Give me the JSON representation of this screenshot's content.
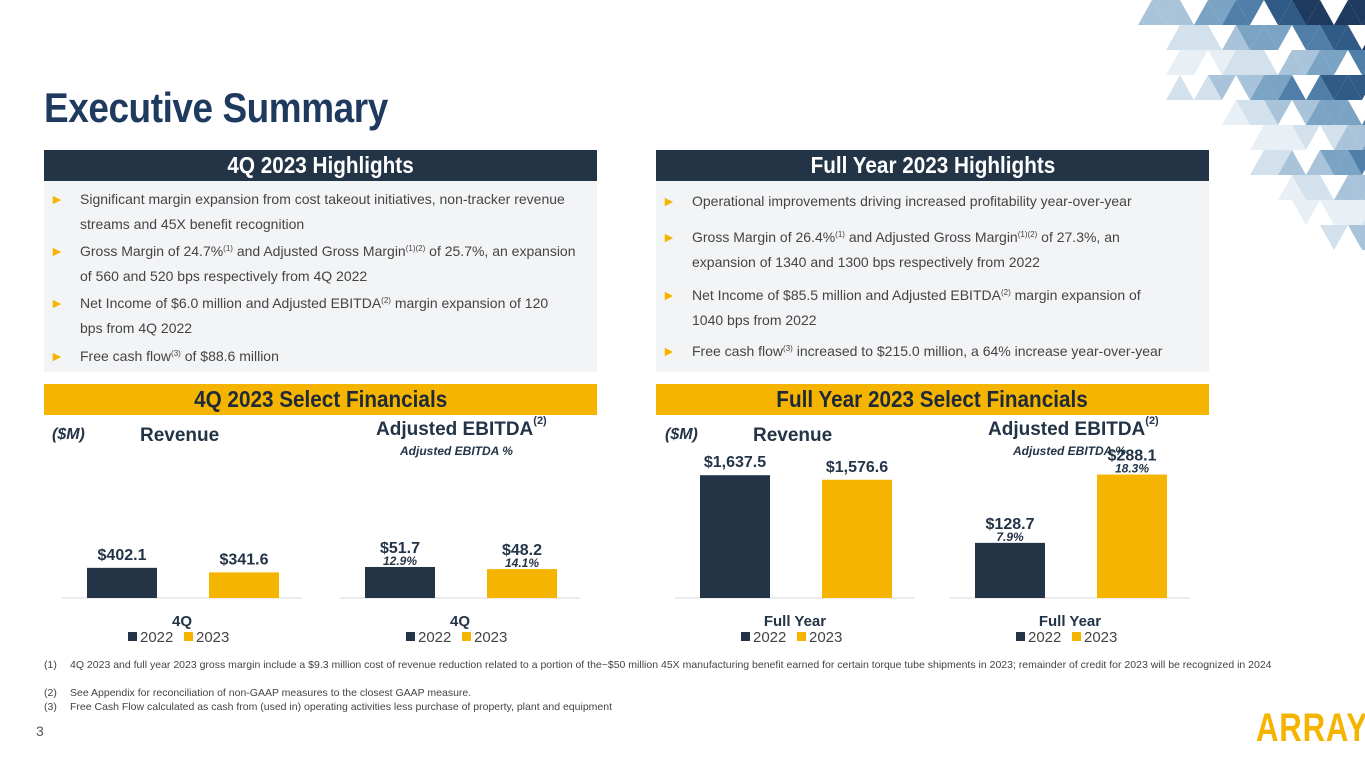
{
  "slide": {
    "title": "Executive Summary",
    "page_number": "3",
    "logo_text": "ARRAY",
    "colors": {
      "navy": "#243447",
      "gold": "#f5b400",
      "title": "#1f3a5f",
      "panel": "#f3f4f6"
    }
  },
  "q4_highlights": {
    "header": "4Q 2023 Highlights",
    "bullet_icon": "right-triangle-icon",
    "bullets": [
      {
        "pre": "Significant margin expansion from cost takeout initiatives, non-tracker revenue",
        "line2": "streams and 45X benefit recognition"
      },
      {
        "pre": "Gross Margin of 24.7%",
        "sup1": "(1)",
        "mid": " and Adjusted Gross Margin",
        "sup2": "(1)(2)",
        "post": " of 25.7%, an expansion",
        "line2": "of 560 and 520 bps respectively from 4Q 2022"
      },
      {
        "pre": "Net Income of $6.0 million and Adjusted EBITDA",
        "sup1": "(2)",
        "post": " margin expansion of 120",
        "line2": "bps from 4Q 2022"
      },
      {
        "pre": "Free cash flow",
        "sup1": "(3)",
        "post": " of $88.6 million"
      }
    ]
  },
  "fy_highlights": {
    "header": "Full Year 2023 Highlights",
    "bullets": [
      {
        "pre": "Operational improvements driving increased profitability year-over-year"
      },
      {
        "pre": "Gross Margin of 26.4%",
        "sup1": "(1)",
        "mid": " and Adjusted Gross Margin",
        "sup2": "(1)(2)",
        "post": " of 27.3%, an",
        "line2": "expansion of 1340 and 1300 bps respectively from 2022"
      },
      {
        "pre": "Net Income of $85.5 million and Adjusted EBITDA",
        "sup1": "(2)",
        "post": " margin expansion of",
        "line2": "1040 bps from 2022"
      },
      {
        "pre": "Free cash flow",
        "sup1": "(3)",
        "post": " increased to $215.0 million, a 64% increase year-over-year"
      }
    ]
  },
  "q4_financials": {
    "header": "4Q 2023 Select Financials",
    "unit": "($M)"
  },
  "fy_financials": {
    "header": "Full Year 2023 Select Financials",
    "unit": "($M)"
  },
  "chart_data": [
    {
      "id": "q4-revenue",
      "type": "bar",
      "title": "Revenue",
      "categories": [
        "4Q"
      ],
      "series": [
        {
          "name": "2022",
          "values": [
            402.1
          ],
          "labels": [
            "$402.1"
          ]
        },
        {
          "name": "2023",
          "values": [
            341.6
          ],
          "labels": [
            "$341.6"
          ]
        }
      ],
      "legend": [
        "2022",
        "2023"
      ],
      "legend_position": "bottom",
      "ylim": [
        0,
        2000
      ]
    },
    {
      "id": "q4-ebitda",
      "type": "bar",
      "title": "Adjusted EBITDA",
      "title_sup": "(2)",
      "subtitle": "Adjusted EBITDA %",
      "categories": [
        "4Q"
      ],
      "series": [
        {
          "name": "2022",
          "values": [
            51.7
          ],
          "labels": [
            "$51.7"
          ],
          "pct": [
            "12.9%"
          ]
        },
        {
          "name": "2023",
          "values": [
            48.2
          ],
          "labels": [
            "$48.2"
          ],
          "pct": [
            "14.1%"
          ]
        }
      ],
      "legend": [
        "2022",
        "2023"
      ],
      "legend_position": "bottom",
      "ylim": [
        0,
        250
      ]
    },
    {
      "id": "fy-revenue",
      "type": "bar",
      "title": "Revenue",
      "categories": [
        "Full Year"
      ],
      "series": [
        {
          "name": "2022",
          "values": [
            1637.5
          ],
          "labels": [
            "$1,637.5"
          ]
        },
        {
          "name": "2023",
          "values": [
            1576.6
          ],
          "labels": [
            "$1,576.6"
          ]
        }
      ],
      "legend": [
        "2022",
        "2023"
      ],
      "legend_position": "bottom",
      "ylim": [
        0,
        2000
      ]
    },
    {
      "id": "fy-ebitda",
      "type": "bar",
      "title": "Adjusted EBITDA",
      "title_sup": "(2)",
      "subtitle": "Adjusted EBITDA %",
      "categories": [
        "Full Year"
      ],
      "series": [
        {
          "name": "2022",
          "values": [
            128.7
          ],
          "labels": [
            "$128.7"
          ],
          "pct": [
            "7.9%"
          ]
        },
        {
          "name": "2023",
          "values": [
            288.1
          ],
          "labels": [
            "$288.1"
          ],
          "pct": [
            "18.3%"
          ]
        }
      ],
      "legend": [
        "2022",
        "2023"
      ],
      "legend_position": "bottom",
      "ylim": [
        0,
        350
      ]
    }
  ],
  "footnotes": [
    {
      "num": "(1)",
      "text": "4Q 2023 and full year 2023 gross margin include a $9.3 million cost of revenue reduction related to a portion of the~$50 million 45X manufacturing benefit earned for certain torque tube shipments in 2023; remainder of credit for 2023 will be recognized in 2024"
    },
    {
      "num": "(2)",
      "text": "See Appendix for reconciliation of non-GAAP measures to the closest GAAP measure."
    },
    {
      "num": "(3)",
      "text": "Free Cash Flow calculated as cash from (used in) operating activities less purchase of property, plant and equipment"
    }
  ]
}
